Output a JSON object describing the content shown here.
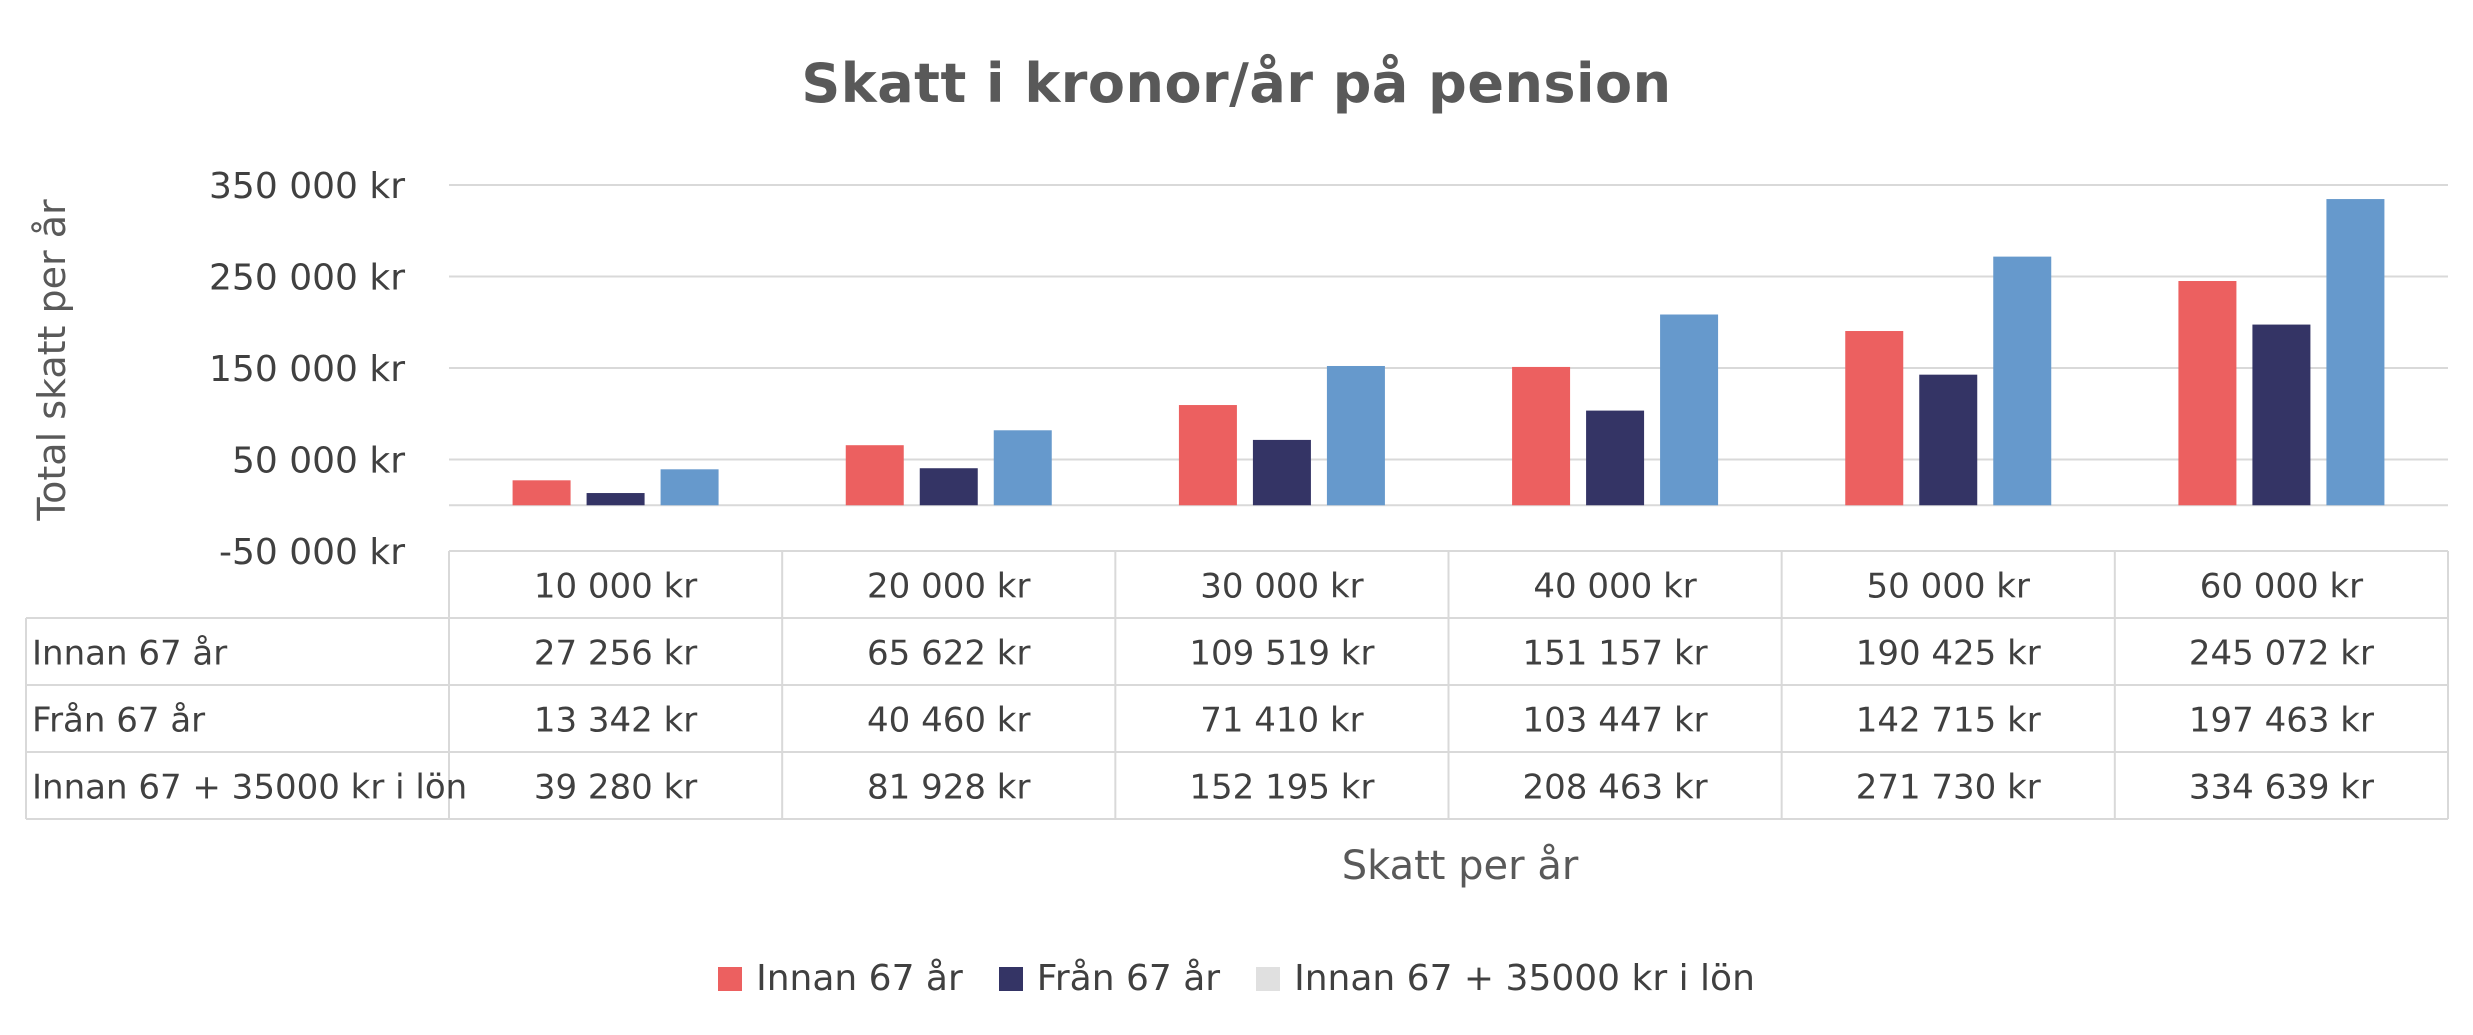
{
  "chart_data": {
    "type": "bar",
    "title": "Skatt i kronor/år på pension",
    "xlabel": "Skatt per år",
    "ylabel": "Total skatt per år",
    "ylim": [
      -50000,
      350000
    ],
    "yticks": [
      -50000,
      50000,
      150000,
      250000,
      350000
    ],
    "ytick_labels": [
      "-50 000 kr",
      "50 000 kr",
      "150 000 kr",
      "250 000 kr",
      "350 000 kr"
    ],
    "grid": true,
    "categories": [
      "10 000 kr",
      "20 000 kr",
      "30 000 kr",
      "40 000 kr",
      "50 000 kr",
      "60 000 kr"
    ],
    "series": [
      {
        "name": "Innan 67 år",
        "color": "#EC6060",
        "values": [
          27256,
          65622,
          109519,
          151157,
          190425,
          245072
        ],
        "labels": [
          "27 256 kr",
          "65 622 kr",
          "109 519 kr",
          "151 157 kr",
          "190 425 kr",
          "245 072 kr"
        ]
      },
      {
        "name": "Från 67 år",
        "color": "#343465",
        "values": [
          13342,
          40460,
          71410,
          103447,
          142715,
          197463
        ],
        "labels": [
          "13 342 kr",
          "40 460 kr",
          "71 410 kr",
          "103 447 kr",
          "142 715 kr",
          "197 463 kr"
        ]
      },
      {
        "name": "Innan 67 + 35000 kr i lön",
        "color": "#6699CC",
        "legend_color": "#E0E0E0",
        "values": [
          39280,
          81928,
          152195,
          208463,
          271730,
          334639
        ],
        "labels": [
          "39 280 kr",
          "81 928 kr",
          "152 195 kr",
          "208 463 kr",
          "271 730 kr",
          "334 639 kr"
        ]
      }
    ],
    "legend_position": "bottom",
    "data_table": true
  }
}
